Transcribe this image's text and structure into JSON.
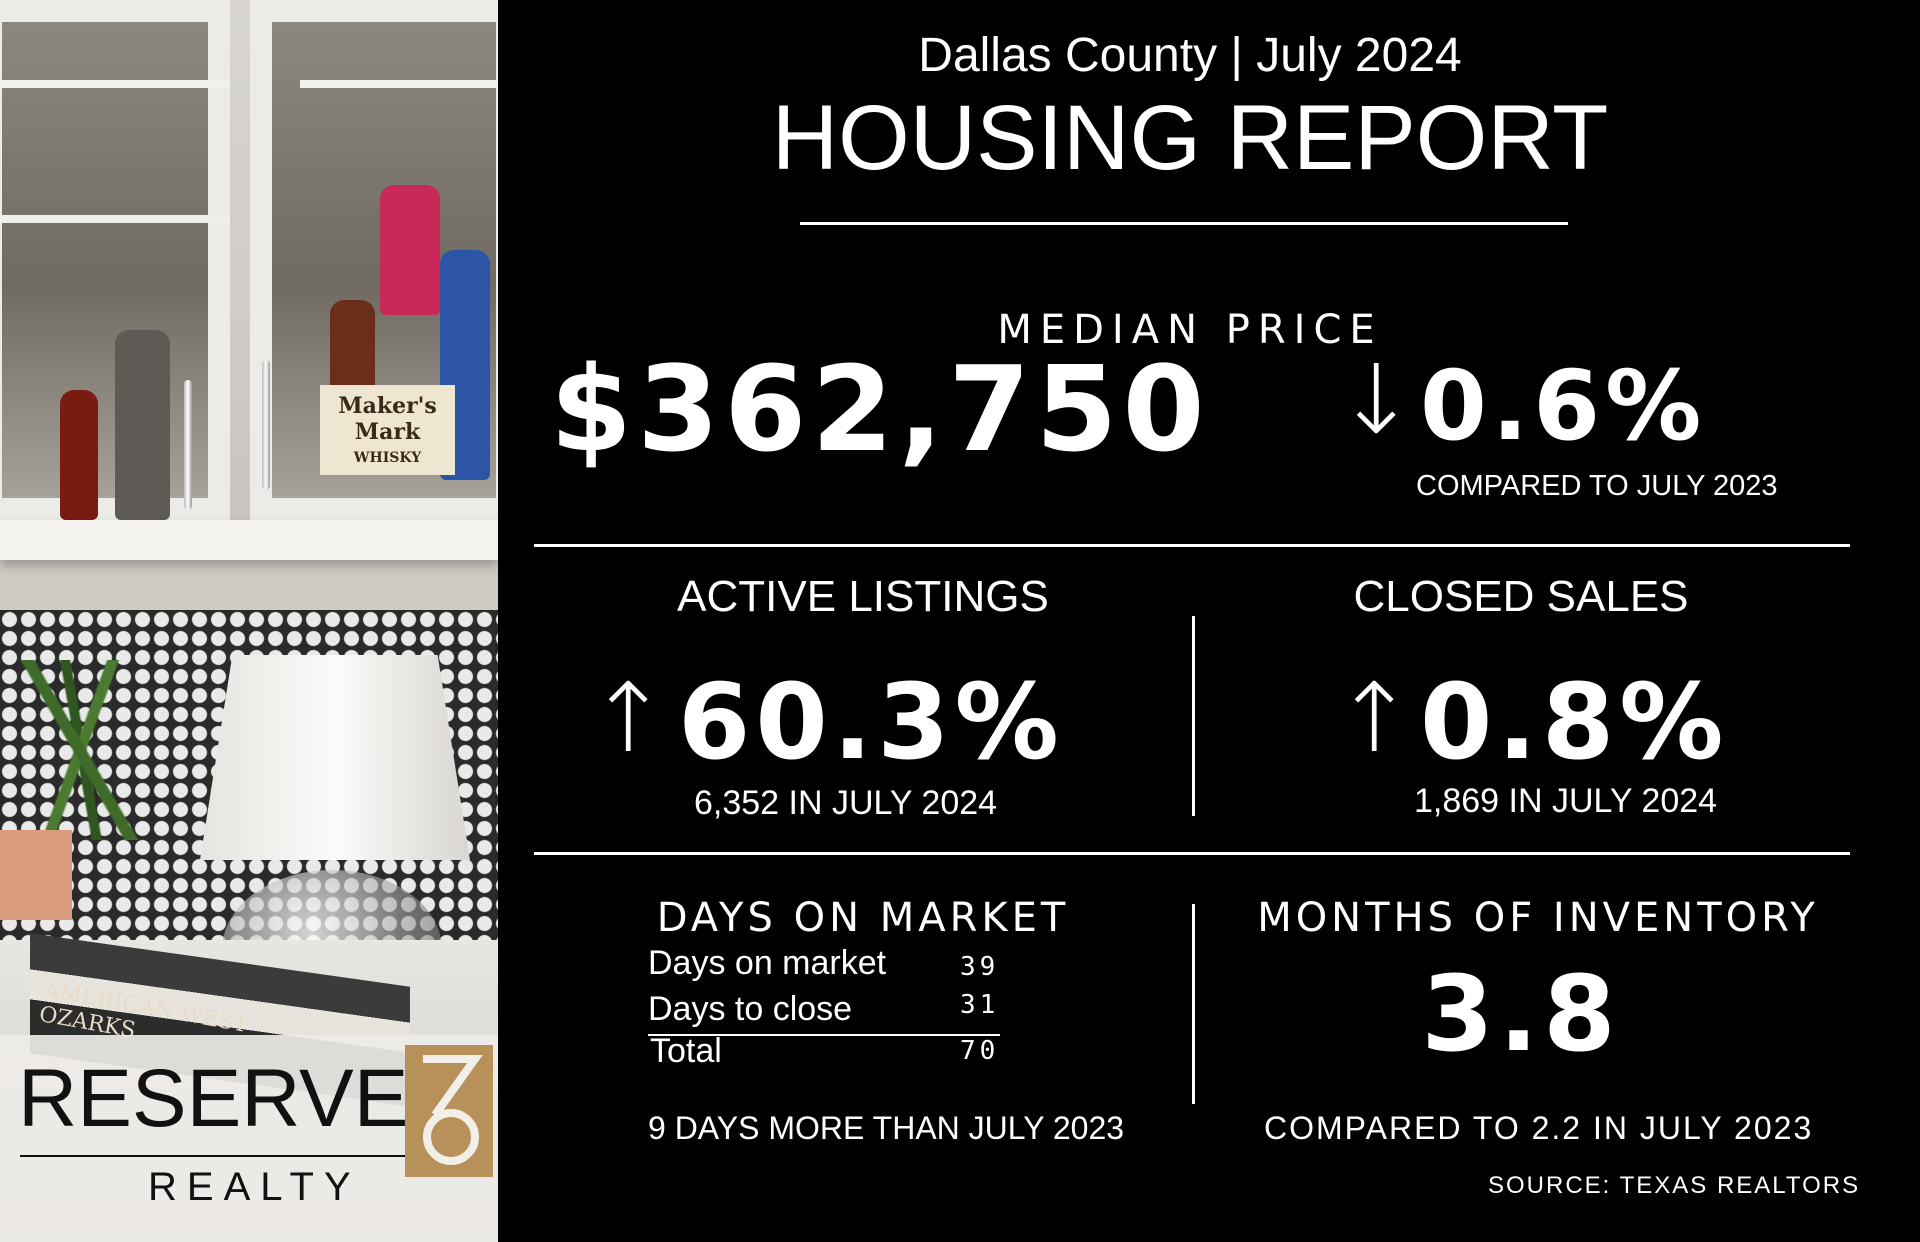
{
  "header": {
    "subtitle": "Dallas County | July 2024",
    "title": "HOUSING REPORT"
  },
  "median_price": {
    "label": "MEDIAN PRICE",
    "value": "$362,750",
    "change": "0.6%",
    "direction": "down",
    "comparison": "COMPARED TO JULY 2023"
  },
  "active_listings": {
    "label": "ACTIVE LISTINGS",
    "change": "60.3%",
    "direction": "up",
    "detail": "6,352 IN JULY 2024"
  },
  "closed_sales": {
    "label": "CLOSED SALES",
    "change": "0.8%",
    "direction": "up",
    "detail": "1,869 IN JULY 2024"
  },
  "days_on_market": {
    "label": "DAYS ON MARKET",
    "rows": [
      {
        "label": "Days on market",
        "value": "39"
      },
      {
        "label": "Days to close",
        "value": "31"
      },
      {
        "label": "Total",
        "value": "70"
      }
    ],
    "comparison": "9 DAYS MORE THAN JULY 2023"
  },
  "months_of_inventory": {
    "label": "MONTHS OF INVENTORY",
    "value": "3.8",
    "comparison": "COMPARED TO 2.2 IN JULY 2023"
  },
  "source": "SOURCE: TEXAS REALTORS",
  "photo": {
    "bottle_label_1": "Maker's Mark",
    "bottle_label_2": "WHISKY",
    "book_text_1": "AMERICAN WEST",
    "book_text_2": "OZARKS"
  },
  "logo": {
    "name": "RESERVE",
    "sub": "REALTY"
  },
  "colors": {
    "background": "#000000",
    "text": "#ffffff",
    "logo_gold": "#b8915a"
  }
}
